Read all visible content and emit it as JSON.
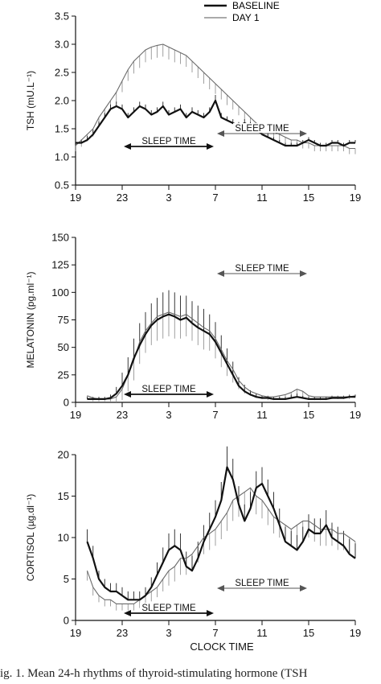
{
  "caption": "ig. 1. Mean 24-h rhythms of thyroid-stimulating hormone (TSH",
  "legend": {
    "items": [
      "BASELINE",
      "DAY 1"
    ],
    "placement": "top-right",
    "colors": [
      "#111111",
      "#777777"
    ]
  },
  "chart_data": [
    {
      "type": "line",
      "panel": "tsh",
      "ylabel": "TSH (mU.L⁻¹)",
      "xlabel": "",
      "xlim": [
        19,
        43
      ],
      "ylim": [
        0.5,
        3.5
      ],
      "xtick_values": [
        19,
        23,
        27,
        31,
        35,
        39,
        43
      ],
      "xtick_labels": [
        "19",
        "23",
        "3",
        "7",
        "11",
        "15",
        "19"
      ],
      "ytick_values": [
        0.5,
        1.0,
        1.5,
        2.0,
        2.5,
        3.0,
        3.5
      ],
      "ytick_labels": [
        "0.5",
        "1.0",
        "1.5",
        "2.0",
        "2.5",
        "3.0",
        "3.5"
      ],
      "grid": false,
      "annotations": [
        {
          "text": "SLEEP TIME",
          "x_start": 23,
          "x_end": 31,
          "series": "BASELINE",
          "row": "low"
        },
        {
          "text": "SLEEP TIME",
          "x_start": 31,
          "x_end": 39,
          "series": "DAY 1",
          "row": "high"
        }
      ],
      "x": [
        19,
        19.5,
        20,
        20.5,
        21,
        21.5,
        22,
        22.5,
        23,
        23.5,
        24,
        24.5,
        25,
        25.5,
        26,
        26.5,
        27,
        27.5,
        28,
        28.5,
        29,
        29.5,
        30,
        30.5,
        31,
        31.5,
        32,
        32.5,
        33,
        33.5,
        34,
        34.5,
        35,
        35.5,
        36,
        36.5,
        37,
        37.5,
        38,
        38.5,
        39,
        39.5,
        40,
        40.5,
        41,
        41.5,
        42,
        42.5,
        43
      ],
      "series": [
        {
          "name": "BASELINE",
          "values": [
            1.25,
            1.25,
            1.3,
            1.4,
            1.55,
            1.7,
            1.85,
            1.9,
            1.85,
            1.7,
            1.8,
            1.9,
            1.85,
            1.75,
            1.8,
            1.9,
            1.75,
            1.8,
            1.85,
            1.7,
            1.8,
            1.75,
            1.7,
            1.8,
            2.0,
            1.7,
            1.65,
            1.6,
            1.55,
            1.6,
            1.55,
            1.5,
            1.4,
            1.35,
            1.3,
            1.25,
            1.2,
            1.2,
            1.2,
            1.25,
            1.3,
            1.25,
            1.2,
            1.2,
            1.25,
            1.25,
            1.2,
            1.25,
            1.25
          ],
          "errors": [
            0.05,
            0.06,
            0.07,
            0.08,
            0.08,
            0.08,
            0.08,
            0.08,
            0.08,
            0.08,
            0.08,
            0.08,
            0.08,
            0.08,
            0.08,
            0.08,
            0.08,
            0.08,
            0.08,
            0.08,
            0.08,
            0.08,
            0.08,
            0.08,
            0.1,
            0.08,
            0.07,
            0.07,
            0.07,
            0.07,
            0.07,
            0.06,
            0.06,
            0.06,
            0.05,
            0.05,
            0.05,
            0.05,
            0.05,
            0.05,
            0.05,
            0.05,
            0.05,
            0.05,
            0.05,
            0.05,
            0.05,
            0.05,
            0.05
          ]
        },
        {
          "name": "DAY 1",
          "values": [
            1.2,
            1.3,
            1.4,
            1.5,
            1.7,
            1.85,
            2.0,
            2.15,
            2.35,
            2.55,
            2.7,
            2.8,
            2.9,
            2.95,
            2.98,
            3.0,
            2.95,
            2.9,
            2.85,
            2.8,
            2.7,
            2.6,
            2.5,
            2.4,
            2.3,
            2.2,
            2.1,
            2.0,
            1.9,
            1.8,
            1.7,
            1.6,
            1.55,
            1.5,
            1.45,
            1.4,
            1.35,
            1.3,
            1.3,
            1.25,
            1.25,
            1.2,
            1.2,
            1.2,
            1.2,
            1.2,
            1.2,
            1.15,
            1.15
          ],
          "errors": [
            0.1,
            0.12,
            0.12,
            0.14,
            0.15,
            0.16,
            0.18,
            0.2,
            0.2,
            0.2,
            0.22,
            0.22,
            0.22,
            0.22,
            0.22,
            0.22,
            0.22,
            0.22,
            0.2,
            0.2,
            0.2,
            0.2,
            0.2,
            0.2,
            0.18,
            0.18,
            0.18,
            0.16,
            0.16,
            0.15,
            0.15,
            0.14,
            0.14,
            0.13,
            0.12,
            0.12,
            0.12,
            0.1,
            0.1,
            0.1,
            0.1,
            0.1,
            0.1,
            0.1,
            0.1,
            0.1,
            0.1,
            0.1,
            0.1
          ]
        }
      ]
    },
    {
      "type": "line",
      "panel": "melatonin",
      "ylabel": "MELATONIN (pg.ml⁻¹)",
      "xlabel": "",
      "xlim": [
        19,
        43
      ],
      "ylim": [
        0,
        150
      ],
      "xtick_values": [
        19,
        23,
        27,
        31,
        35,
        39,
        43
      ],
      "xtick_labels": [
        "19",
        "23",
        "3",
        "7",
        "11",
        "15",
        "19"
      ],
      "ytick_values": [
        0,
        25,
        50,
        75,
        100,
        125,
        150
      ],
      "ytick_labels": [
        "0",
        "25",
        "50",
        "75",
        "100",
        "125",
        "150"
      ],
      "grid": false,
      "annotations": [
        {
          "text": "SLEEP TIME",
          "x_start": 23,
          "x_end": 31,
          "series": "BASELINE",
          "row": "low"
        },
        {
          "text": "SLEEP TIME",
          "x_start": 31,
          "x_end": 39,
          "series": "DAY 1",
          "row": "high"
        }
      ],
      "x": [
        20,
        20.5,
        21,
        21.5,
        22,
        22.5,
        23,
        23.5,
        24,
        24.5,
        25,
        25.5,
        26,
        26.5,
        27,
        27.5,
        28,
        28.5,
        29,
        29.5,
        30,
        30.5,
        31,
        31.5,
        32,
        32.5,
        33,
        33.5,
        34,
        34.5,
        35,
        35.5,
        36,
        36.5,
        37,
        37.5,
        38,
        38.5,
        39,
        39.5,
        40,
        40.5,
        41,
        41.5,
        42,
        42.5,
        43
      ],
      "series": [
        {
          "name": "BASELINE",
          "values": [
            3,
            3,
            3,
            3,
            4,
            8,
            15,
            25,
            40,
            52,
            62,
            70,
            75,
            78,
            80,
            78,
            75,
            77,
            72,
            68,
            65,
            62,
            55,
            45,
            35,
            25,
            15,
            10,
            7,
            5,
            4,
            4,
            3,
            3,
            3,
            4,
            5,
            4,
            3,
            3,
            3,
            3,
            4,
            4,
            4,
            5,
            5
          ],
          "errors": [
            2,
            2,
            2,
            2,
            3,
            6,
            12,
            16,
            18,
            20,
            20,
            20,
            20,
            22,
            22,
            22,
            22,
            20,
            20,
            20,
            20,
            18,
            18,
            16,
            14,
            12,
            8,
            6,
            4,
            3,
            2,
            2,
            2,
            2,
            2,
            3,
            3,
            2,
            2,
            2,
            2,
            2,
            2,
            2,
            2,
            2,
            2
          ]
        },
        {
          "name": "DAY 1",
          "values": [
            6,
            4,
            3,
            3,
            3,
            5,
            12,
            25,
            38,
            55,
            65,
            72,
            78,
            80,
            82,
            80,
            78,
            80,
            76,
            72,
            68,
            65,
            58,
            48,
            38,
            30,
            20,
            14,
            10,
            8,
            6,
            5,
            5,
            6,
            7,
            9,
            12,
            10,
            6,
            5,
            5,
            5,
            5,
            5,
            5,
            5,
            6
          ],
          "errors": [
            3,
            3,
            2,
            2,
            2,
            5,
            10,
            15,
            18,
            20,
            20,
            20,
            22,
            22,
            22,
            22,
            20,
            20,
            20,
            20,
            20,
            18,
            18,
            16,
            14,
            12,
            8,
            6,
            4,
            4,
            3,
            3,
            3,
            3,
            4,
            4,
            5,
            4,
            3,
            3,
            3,
            3,
            2,
            2,
            2,
            2,
            2
          ]
        }
      ]
    },
    {
      "type": "line",
      "panel": "cortisol",
      "ylabel": "CORTISOL (µg.dl⁻¹)",
      "xlabel": "CLOCK TIME",
      "xlim": [
        19,
        43
      ],
      "ylim": [
        0,
        20
      ],
      "xtick_values": [
        19,
        23,
        27,
        31,
        35,
        39,
        43
      ],
      "xtick_labels": [
        "19",
        "23",
        "3",
        "7",
        "11",
        "15",
        "19"
      ],
      "ytick_values": [
        0,
        5,
        10,
        15,
        20
      ],
      "ytick_labels": [
        "0",
        "5",
        "10",
        "15",
        "20"
      ],
      "grid": false,
      "annotations": [
        {
          "text": "SLEEP TIME",
          "x_start": 23,
          "x_end": 31,
          "series": "BASELINE",
          "row": "low"
        },
        {
          "text": "SLEEP TIME",
          "x_start": 31,
          "x_end": 39,
          "series": "DAY 1",
          "row": "high"
        }
      ],
      "x": [
        20,
        20.5,
        21,
        21.5,
        22,
        22.5,
        23,
        23.5,
        24,
        24.5,
        25,
        25.5,
        26,
        26.5,
        27,
        27.5,
        28,
        28.5,
        29,
        29.5,
        30,
        30.5,
        31,
        31.5,
        32,
        32.5,
        33,
        33.5,
        34,
        34.5,
        35,
        35.5,
        36,
        36.5,
        37,
        37.5,
        38,
        38.5,
        39,
        39.5,
        40,
        40.5,
        41,
        41.5,
        42,
        42.5,
        43
      ],
      "series": [
        {
          "name": "BASELINE",
          "values": [
            9.5,
            7.5,
            5,
            4,
            3.5,
            3.5,
            3,
            2.5,
            2.5,
            2.5,
            3,
            4,
            5.5,
            7,
            8.5,
            9,
            8.5,
            6.5,
            6,
            7.5,
            9.5,
            11,
            12.5,
            14.5,
            18.5,
            17,
            14,
            12,
            13.5,
            16,
            16.5,
            15,
            13.5,
            11.5,
            9.5,
            9,
            8.5,
            9.5,
            11,
            10.5,
            10.5,
            11.5,
            10,
            9.5,
            9,
            8,
            7.5
          ],
          "errors": [
            1.5,
            1.5,
            1,
            1,
            1,
            1,
            1,
            1,
            1,
            1,
            1,
            1.2,
            1.5,
            1.8,
            2,
            2,
            2,
            1.8,
            1.8,
            2,
            2,
            2,
            2,
            2.2,
            2.5,
            2.5,
            2.2,
            2,
            2,
            2,
            2,
            2,
            2,
            2,
            1.8,
            1.8,
            1.8,
            1.8,
            1.8,
            1.8,
            1.8,
            1.8,
            1.8,
            1.8,
            1.8,
            1.8,
            1.8
          ]
        },
        {
          "name": "DAY 1",
          "values": [
            6,
            4,
            3,
            2.5,
            2.5,
            2,
            2,
            2,
            2,
            2.5,
            3,
            3.5,
            4,
            5,
            6,
            6.5,
            7.5,
            7.5,
            8,
            9,
            10,
            10.5,
            11,
            12,
            13,
            14.5,
            15,
            15.5,
            16,
            15,
            14.5,
            13.5,
            12.5,
            12,
            11.5,
            11,
            11.5,
            12,
            12,
            11.5,
            11,
            11,
            11,
            10.5,
            10.5,
            10,
            9.5
          ],
          "errors": [
            1.2,
            1,
            0.8,
            0.8,
            0.8,
            0.8,
            0.8,
            0.8,
            0.8,
            1,
            1,
            1.2,
            1.2,
            1.5,
            1.8,
            1.8,
            2,
            2,
            2,
            2,
            2,
            2,
            2,
            2.2,
            2.2,
            2.5,
            2.5,
            2.5,
            2.5,
            2.2,
            2.2,
            2,
            2,
            2,
            2,
            2,
            2,
            2,
            2,
            2,
            2,
            2,
            2,
            2,
            2,
            2,
            2
          ]
        }
      ]
    }
  ]
}
